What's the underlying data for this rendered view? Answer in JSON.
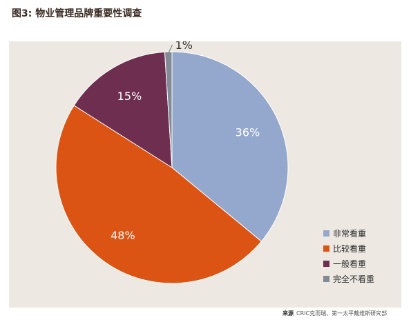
{
  "figure": {
    "title": "图3: 物业管理品牌重要性调查"
  },
  "source": {
    "label": "来源",
    "text": "CRIC克而瑞、第一太平戴维斯研究部"
  },
  "colors": {
    "panel_bg": "#ede8e2",
    "label_light": "#ffffff",
    "label_dark": "#333333"
  },
  "chart_data": {
    "type": "pie",
    "title": "图3: 物业管理品牌重要性调查",
    "start_angle_deg": 90,
    "direction": "clockwise",
    "legend_position": "bottom-right",
    "slices": [
      {
        "name": "非常看重",
        "value": 36,
        "label": "36%",
        "color": "#93a8cc"
      },
      {
        "name": "比较看重",
        "value": 48,
        "label": "48%",
        "color": "#dc5414"
      },
      {
        "name": "一般看重",
        "value": 15,
        "label": "15%",
        "color": "#6d2e4f"
      },
      {
        "name": "完全不看重",
        "value": 1,
        "label": "1%",
        "color": "#818a95"
      }
    ]
  }
}
